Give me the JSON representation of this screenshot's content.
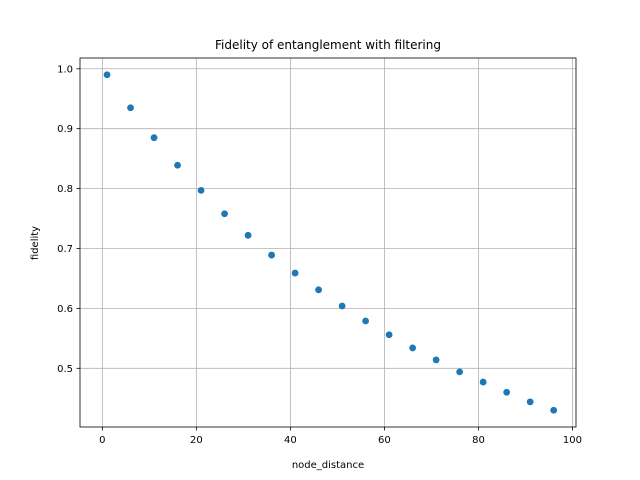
{
  "chart_data": {
    "type": "scatter",
    "title": "Fidelity of entanglement with filtering",
    "xlabel": "node_distance",
    "ylabel": "fidelity",
    "xlim": [
      -4.75,
      100.75
    ],
    "ylim": [
      0.402,
      1.018
    ],
    "xticks": [
      0,
      20,
      40,
      60,
      80,
      100
    ],
    "yticks": [
      0.5,
      0.6,
      0.7,
      0.8,
      0.9,
      1.0
    ],
    "xtick_labels": [
      "0",
      "20",
      "40",
      "60",
      "80",
      "100"
    ],
    "ytick_labels": [
      "0.5",
      "0.6",
      "0.7",
      "0.8",
      "0.9",
      "1.0"
    ],
    "grid": true,
    "marker_color": "#1f77b4",
    "x": [
      1,
      6,
      11,
      16,
      21,
      26,
      31,
      36,
      41,
      46,
      51,
      56,
      61,
      66,
      71,
      76,
      81,
      86,
      91,
      96
    ],
    "y": [
      0.99,
      0.935,
      0.885,
      0.839,
      0.797,
      0.758,
      0.722,
      0.689,
      0.659,
      0.631,
      0.604,
      0.579,
      0.556,
      0.534,
      0.514,
      0.494,
      0.477,
      0.46,
      0.444,
      0.43
    ]
  }
}
